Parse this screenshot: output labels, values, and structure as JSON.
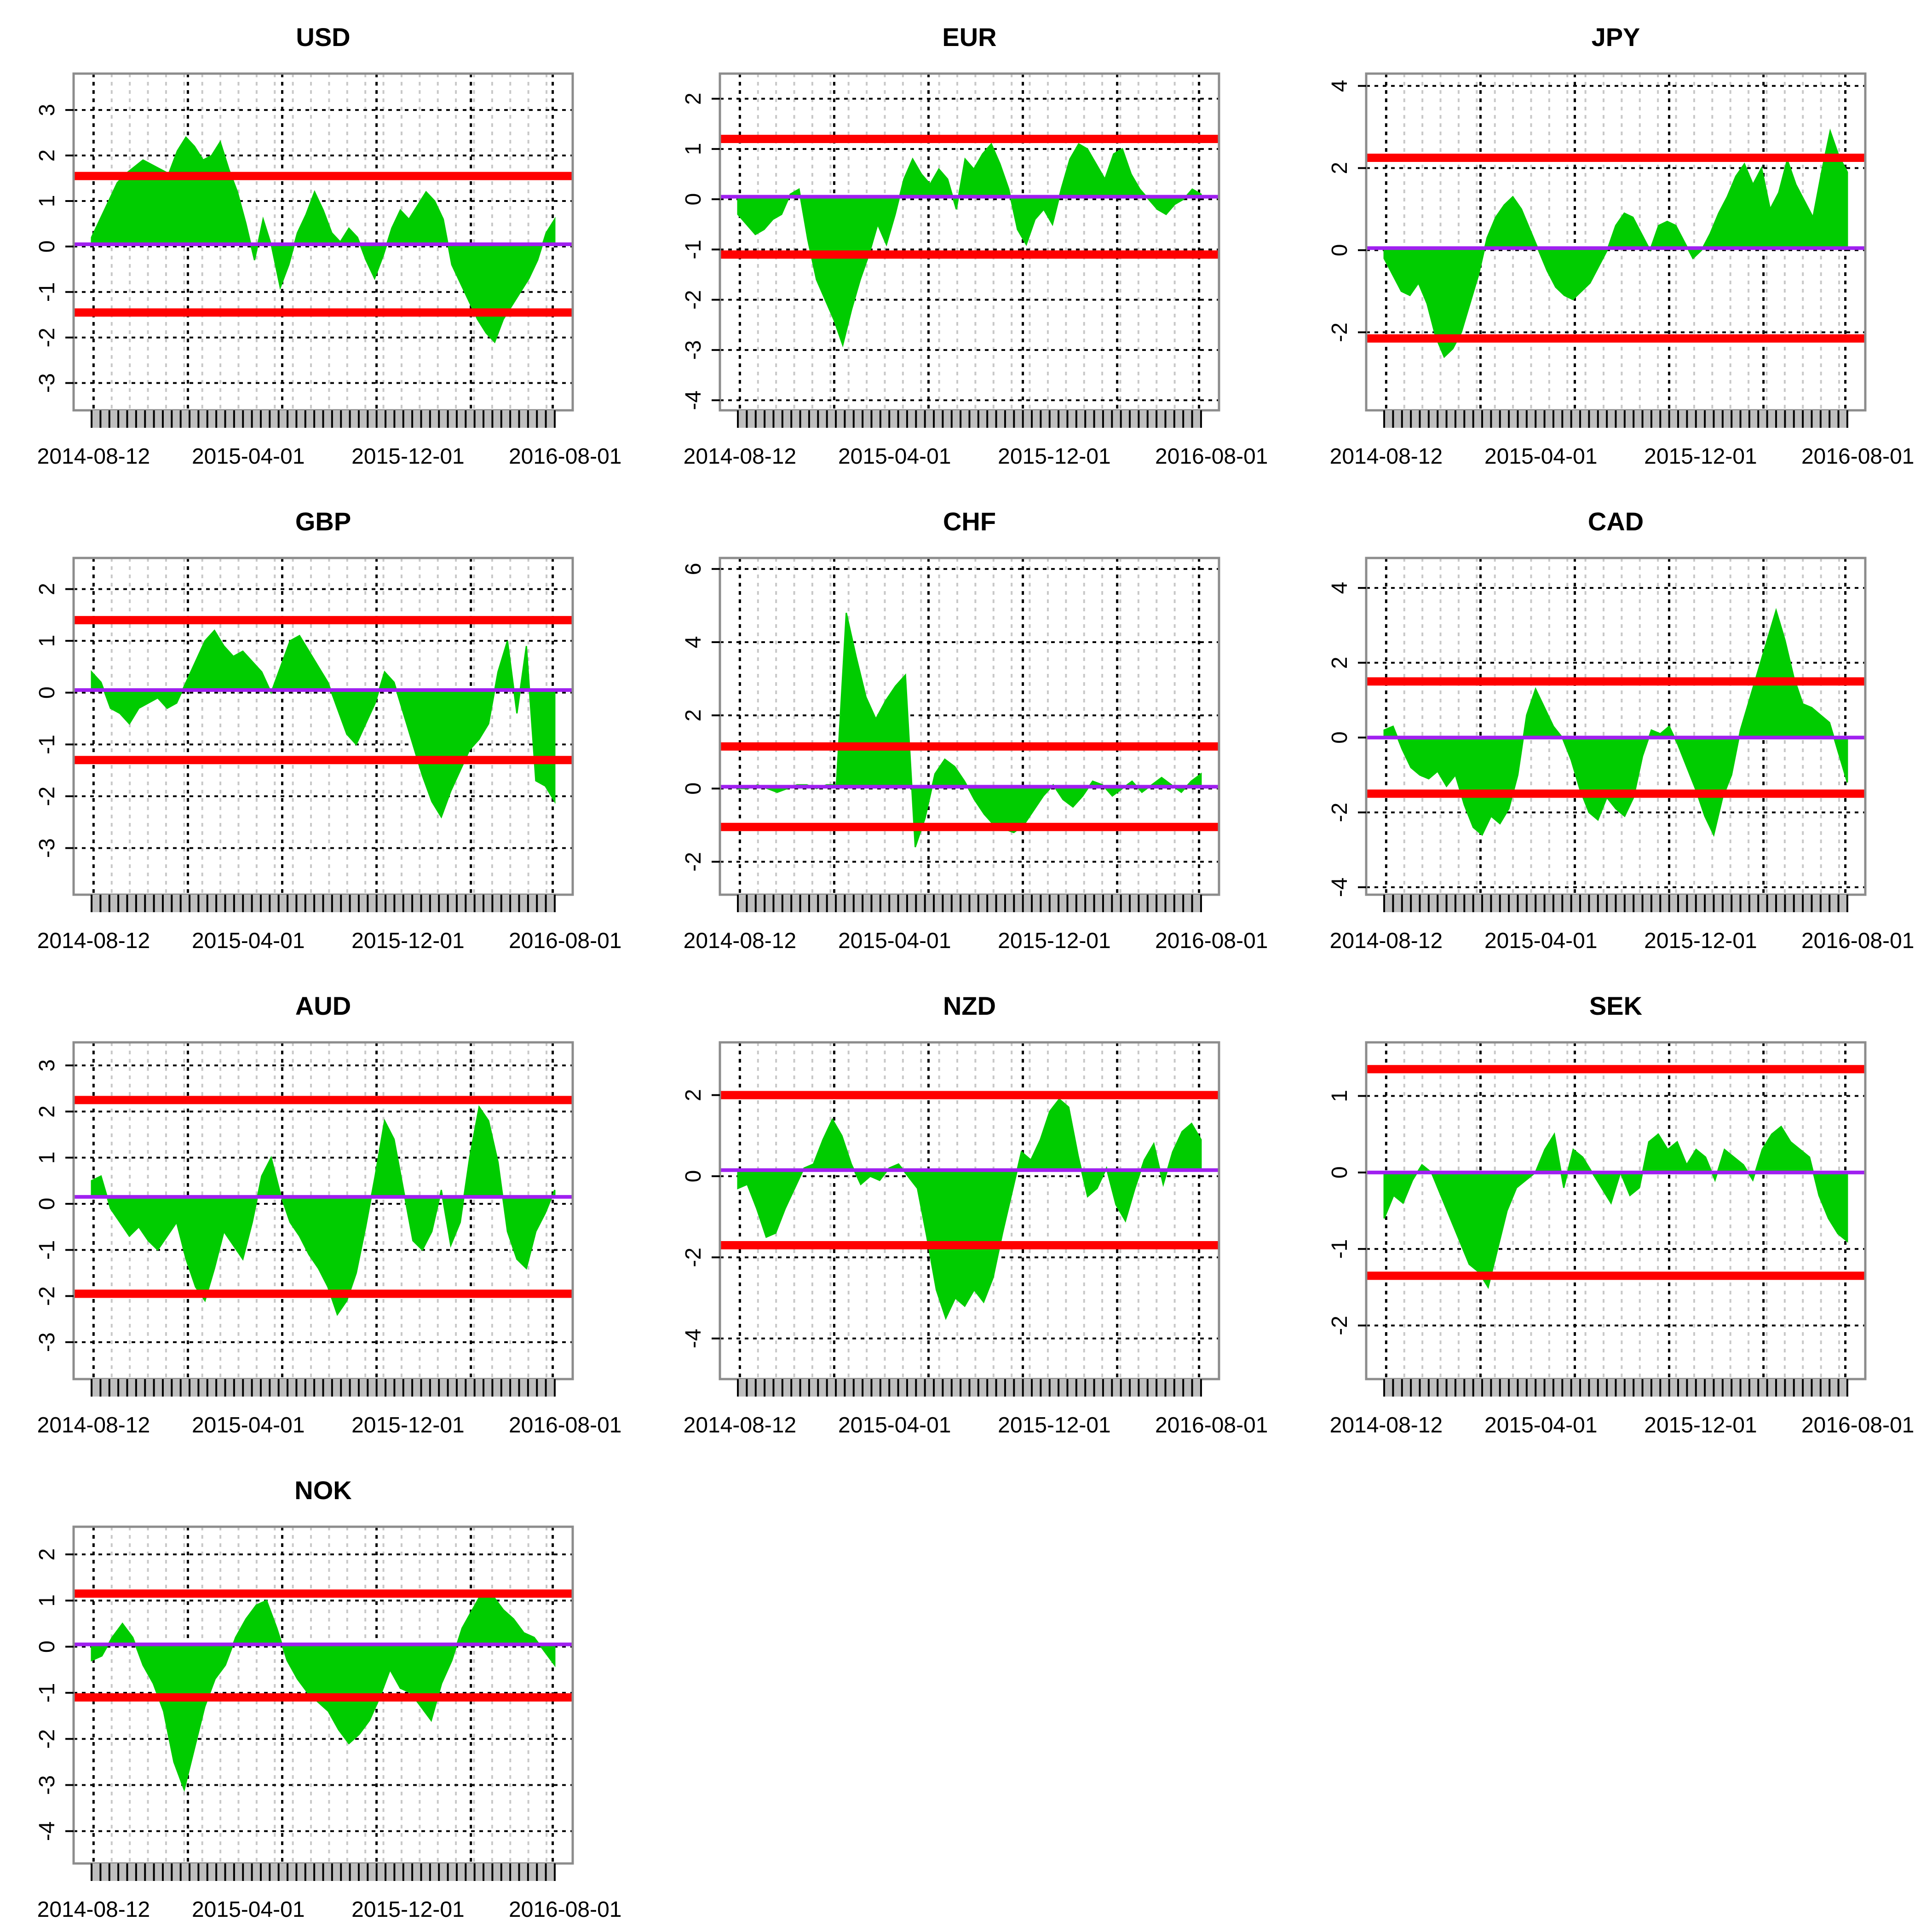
{
  "colors": {
    "fill": "#00cc00",
    "band": "#ff0000",
    "mean": "#a020f0",
    "frame": "#8c8c8c",
    "grid_major": "#000000",
    "grid_minor": "#c8c8c8",
    "rug": "#bebebe"
  },
  "chart_data": [
    {
      "type": "area",
      "title": "USD",
      "x_labels": [
        "2014-08-12",
        "2015-04-01",
        "2015-12-01",
        "2016-08-01"
      ],
      "ylim": [
        -3.6,
        3.8
      ],
      "yticks": [
        -3,
        -2,
        -1,
        0,
        1,
        2,
        3
      ],
      "bands": {
        "upper": 1.55,
        "lower": -1.45,
        "mean": 0.05
      },
      "series": [
        {
          "name": "USD",
          "values": [
            0.2,
            0.6,
            1.0,
            1.4,
            1.6,
            1.75,
            1.9,
            1.8,
            1.7,
            1.6,
            2.1,
            2.4,
            2.2,
            1.9,
            2.0,
            2.3,
            1.7,
            1.2,
            0.5,
            -0.3,
            0.6,
            0.0,
            -0.9,
            -0.4,
            0.3,
            0.7,
            1.2,
            0.8,
            0.3,
            0.1,
            0.4,
            0.2,
            -0.3,
            -0.7,
            -0.2,
            0.4,
            0.8,
            0.6,
            0.9,
            1.2,
            1.0,
            0.6,
            -0.4,
            -0.8,
            -1.2,
            -1.6,
            -1.9,
            -2.1,
            -1.6,
            -1.3,
            -1.0,
            -0.7,
            -0.3,
            0.3,
            0.6
          ]
        }
      ]
    },
    {
      "type": "area",
      "title": "EUR",
      "x_labels": [
        "2014-08-12",
        "2015-04-01",
        "2015-12-01",
        "2016-08-01"
      ],
      "ylim": [
        -4.2,
        2.5
      ],
      "yticks": [
        -4,
        -3,
        -2,
        -1,
        0,
        1,
        2
      ],
      "bands": {
        "upper": 1.2,
        "lower": -1.1,
        "mean": 0.05
      },
      "series": [
        {
          "name": "EUR",
          "values": [
            -0.3,
            -0.5,
            -0.7,
            -0.6,
            -0.4,
            -0.3,
            0.1,
            0.2,
            -0.8,
            -1.6,
            -2.0,
            -2.4,
            -2.9,
            -2.2,
            -1.6,
            -1.1,
            -0.5,
            -0.9,
            -0.3,
            0.4,
            0.8,
            0.5,
            0.3,
            0.6,
            0.4,
            -0.2,
            0.8,
            0.6,
            0.9,
            1.1,
            0.7,
            0.2,
            -0.6,
            -0.9,
            -0.4,
            -0.2,
            -0.5,
            0.2,
            0.8,
            1.1,
            1.0,
            0.7,
            0.4,
            0.9,
            1.0,
            0.5,
            0.2,
            0.0,
            -0.2,
            -0.3,
            -0.1,
            0.0,
            0.2,
            0.1
          ]
        }
      ]
    },
    {
      "type": "area",
      "title": "JPY",
      "x_labels": [
        "2014-08-12",
        "2015-04-01",
        "2015-12-01",
        "2016-08-01"
      ],
      "ylim": [
        -3.9,
        4.3
      ],
      "yticks": [
        -2,
        0,
        2,
        4
      ],
      "bands": {
        "upper": 2.25,
        "lower": -2.15,
        "mean": 0.05
      },
      "series": [
        {
          "name": "JPY",
          "values": [
            -0.2,
            -0.6,
            -1.0,
            -1.1,
            -0.8,
            -1.3,
            -2.1,
            -2.6,
            -2.4,
            -2.0,
            -1.3,
            -0.6,
            0.3,
            0.8,
            1.1,
            1.3,
            1.0,
            0.5,
            0.0,
            -0.5,
            -0.9,
            -1.1,
            -1.2,
            -1.0,
            -0.8,
            -0.4,
            0.0,
            0.6,
            0.9,
            0.8,
            0.4,
            0.0,
            0.6,
            0.7,
            0.6,
            0.2,
            -0.2,
            0.0,
            0.4,
            0.9,
            1.3,
            1.8,
            2.1,
            1.6,
            2.0,
            1.0,
            1.4,
            2.2,
            1.6,
            1.2,
            0.8,
            1.9,
            2.9,
            2.3,
            1.9
          ]
        }
      ]
    },
    {
      "type": "area",
      "title": "GBP",
      "x_labels": [
        "2014-08-12",
        "2015-04-01",
        "2015-12-01",
        "2016-08-01"
      ],
      "ylim": [
        -3.9,
        2.6
      ],
      "yticks": [
        -3,
        -2,
        -1,
        0,
        1,
        2
      ],
      "bands": {
        "upper": 1.4,
        "lower": -1.3,
        "mean": 0.05
      },
      "series": [
        {
          "name": "GBP",
          "values": [
            0.4,
            0.2,
            -0.3,
            -0.4,
            -0.6,
            -0.3,
            -0.2,
            -0.1,
            -0.3,
            -0.2,
            0.2,
            0.6,
            1.0,
            1.2,
            0.9,
            0.7,
            0.8,
            0.6,
            0.4,
            0.0,
            0.5,
            1.0,
            1.1,
            0.8,
            0.5,
            0.2,
            -0.3,
            -0.8,
            -1.0,
            -0.6,
            -0.2,
            0.4,
            0.2,
            -0.4,
            -1.0,
            -1.6,
            -2.1,
            -2.4,
            -1.9,
            -1.5,
            -1.1,
            -0.9,
            -0.6,
            0.4,
            1.0,
            -0.4,
            0.9,
            -1.7,
            -1.8,
            -2.1
          ]
        }
      ]
    },
    {
      "type": "area",
      "title": "CHF",
      "x_labels": [
        "2014-08-12",
        "2015-04-01",
        "2015-12-01",
        "2016-08-01"
      ],
      "ylim": [
        -2.9,
        6.3
      ],
      "yticks": [
        -2,
        0,
        2,
        4,
        6
      ],
      "bands": {
        "upper": 1.15,
        "lower": -1.05,
        "mean": 0.05
      },
      "series": [
        {
          "name": "CHF",
          "values": [
            0.0,
            0.0,
            0.1,
            0.0,
            -0.1,
            0.0,
            0.1,
            0.1,
            0.0,
            0.1,
            0.1,
            4.8,
            3.6,
            2.5,
            1.9,
            2.4,
            2.8,
            3.1,
            -1.6,
            -0.8,
            0.4,
            0.8,
            0.6,
            0.2,
            -0.3,
            -0.7,
            -1.0,
            -1.1,
            -1.2,
            -1.0,
            -0.6,
            -0.2,
            0.1,
            -0.3,
            -0.5,
            -0.2,
            0.2,
            0.1,
            -0.2,
            0.0,
            0.2,
            -0.1,
            0.1,
            0.3,
            0.1,
            -0.1,
            0.2,
            0.4
          ]
        }
      ]
    },
    {
      "type": "area",
      "title": "CAD",
      "x_labels": [
        "2014-08-12",
        "2015-04-01",
        "2015-12-01",
        "2016-08-01"
      ],
      "ylim": [
        -4.2,
        4.8
      ],
      "yticks": [
        -4,
        -2,
        0,
        2,
        4
      ],
      "bands": {
        "upper": 1.5,
        "lower": -1.5,
        "mean": 0.0
      },
      "series": [
        {
          "name": "CAD",
          "values": [
            0.2,
            0.3,
            -0.3,
            -0.8,
            -1.0,
            -1.1,
            -0.9,
            -1.3,
            -1.0,
            -1.8,
            -2.4,
            -2.6,
            -2.1,
            -2.3,
            -1.9,
            -1.0,
            0.6,
            1.3,
            0.8,
            0.3,
            0.0,
            -0.6,
            -1.4,
            -2.0,
            -2.2,
            -1.6,
            -1.9,
            -2.1,
            -1.6,
            -0.5,
            0.2,
            0.1,
            0.3,
            -0.2,
            -0.8,
            -1.4,
            -2.1,
            -2.6,
            -1.6,
            -1.0,
            0.2,
            1.0,
            1.8,
            2.6,
            3.4,
            2.6,
            1.6,
            0.9,
            0.8,
            0.6,
            0.4,
            -0.4,
            -1.2
          ]
        }
      ]
    },
    {
      "type": "area",
      "title": "AUD",
      "x_labels": [
        "2014-08-12",
        "2015-04-01",
        "2015-12-01",
        "2016-08-01"
      ],
      "ylim": [
        -3.8,
        3.5
      ],
      "yticks": [
        -3,
        -2,
        -1,
        0,
        1,
        2,
        3
      ],
      "bands": {
        "upper": 2.25,
        "lower": -1.95,
        "mean": 0.15
      },
      "series": [
        {
          "name": "AUD",
          "values": [
            0.5,
            0.6,
            -0.1,
            -0.4,
            -0.7,
            -0.5,
            -0.8,
            -1.0,
            -0.7,
            -0.4,
            -1.2,
            -1.8,
            -2.1,
            -1.4,
            -0.6,
            -0.9,
            -1.2,
            -0.4,
            0.6,
            1.0,
            0.2,
            -0.4,
            -0.7,
            -1.1,
            -1.4,
            -1.8,
            -2.4,
            -2.1,
            -1.5,
            -0.5,
            0.6,
            1.8,
            1.4,
            0.3,
            -0.8,
            -1.0,
            -0.6,
            0.3,
            -0.9,
            -0.4,
            1.0,
            2.1,
            1.8,
            0.9,
            -0.6,
            -1.2,
            -1.4,
            -0.6,
            -0.2,
            0.3
          ]
        }
      ]
    },
    {
      "type": "area",
      "title": "NZD",
      "x_labels": [
        "2014-08-12",
        "2015-04-01",
        "2015-12-01",
        "2016-08-01"
      ],
      "ylim": [
        -5.0,
        3.3
      ],
      "yticks": [
        -4,
        -2,
        0,
        2
      ],
      "bands": {
        "upper": 2.0,
        "lower": -1.7,
        "mean": 0.15
      },
      "series": [
        {
          "name": "NZD",
          "values": [
            -0.3,
            -0.2,
            -0.8,
            -1.5,
            -1.4,
            -0.8,
            -0.3,
            0.2,
            0.3,
            0.9,
            1.4,
            1.0,
            0.3,
            -0.2,
            0.0,
            -0.1,
            0.2,
            0.3,
            0.0,
            -0.3,
            -1.5,
            -2.8,
            -3.5,
            -3.0,
            -3.2,
            -2.8,
            -3.1,
            -2.5,
            -1.4,
            -0.4,
            0.6,
            0.4,
            0.9,
            1.6,
            1.9,
            1.7,
            0.5,
            -0.5,
            -0.3,
            0.2,
            -0.7,
            -1.1,
            -0.3,
            0.4,
            0.8,
            -0.2,
            0.6,
            1.1,
            1.3,
            0.9
          ]
        }
      ]
    },
    {
      "type": "area",
      "title": "SEK",
      "x_labels": [
        "2014-08-12",
        "2015-04-01",
        "2015-12-01",
        "2016-08-01"
      ],
      "ylim": [
        -2.7,
        1.7
      ],
      "yticks": [
        -2,
        -1,
        0,
        1
      ],
      "bands": {
        "upper": 1.35,
        "lower": -1.35,
        "mean": 0.0
      },
      "series": [
        {
          "name": "SEK",
          "values": [
            -0.6,
            -0.3,
            -0.4,
            -0.1,
            0.1,
            0.0,
            -0.3,
            -0.6,
            -0.9,
            -1.2,
            -1.3,
            -1.5,
            -1.0,
            -0.5,
            -0.2,
            -0.1,
            0.0,
            0.3,
            0.5,
            -0.2,
            0.3,
            0.2,
            0.0,
            -0.2,
            -0.4,
            0.0,
            -0.3,
            -0.2,
            0.4,
            0.5,
            0.3,
            0.4,
            0.1,
            0.3,
            0.2,
            -0.1,
            0.3,
            0.2,
            0.1,
            -0.1,
            0.3,
            0.5,
            0.6,
            0.4,
            0.3,
            0.2,
            -0.3,
            -0.6,
            -0.8,
            -0.9
          ]
        }
      ]
    },
    {
      "type": "area",
      "title": "NOK",
      "x_labels": [
        "2014-08-12",
        "2015-04-01",
        "2015-12-01",
        "2016-08-01"
      ],
      "ylim": [
        -4.7,
        2.6
      ],
      "yticks": [
        -4,
        -3,
        -2,
        -1,
        0,
        1,
        2
      ],
      "bands": {
        "upper": 1.15,
        "lower": -1.1,
        "mean": 0.05
      },
      "series": [
        {
          "name": "NOK",
          "values": [
            -0.3,
            -0.2,
            0.2,
            0.5,
            0.2,
            -0.4,
            -0.8,
            -1.4,
            -2.5,
            -3.1,
            -2.2,
            -1.3,
            -0.7,
            -0.4,
            0.2,
            0.6,
            0.9,
            1.0,
            0.4,
            -0.3,
            -0.7,
            -1.0,
            -1.2,
            -1.4,
            -1.8,
            -2.1,
            -1.9,
            -1.6,
            -1.1,
            -0.5,
            -0.9,
            -1.0,
            -1.3,
            -1.6,
            -0.8,
            -0.3,
            0.4,
            0.8,
            1.2,
            1.1,
            0.8,
            0.6,
            0.3,
            0.2,
            -0.1,
            -0.4
          ]
        }
      ]
    }
  ]
}
